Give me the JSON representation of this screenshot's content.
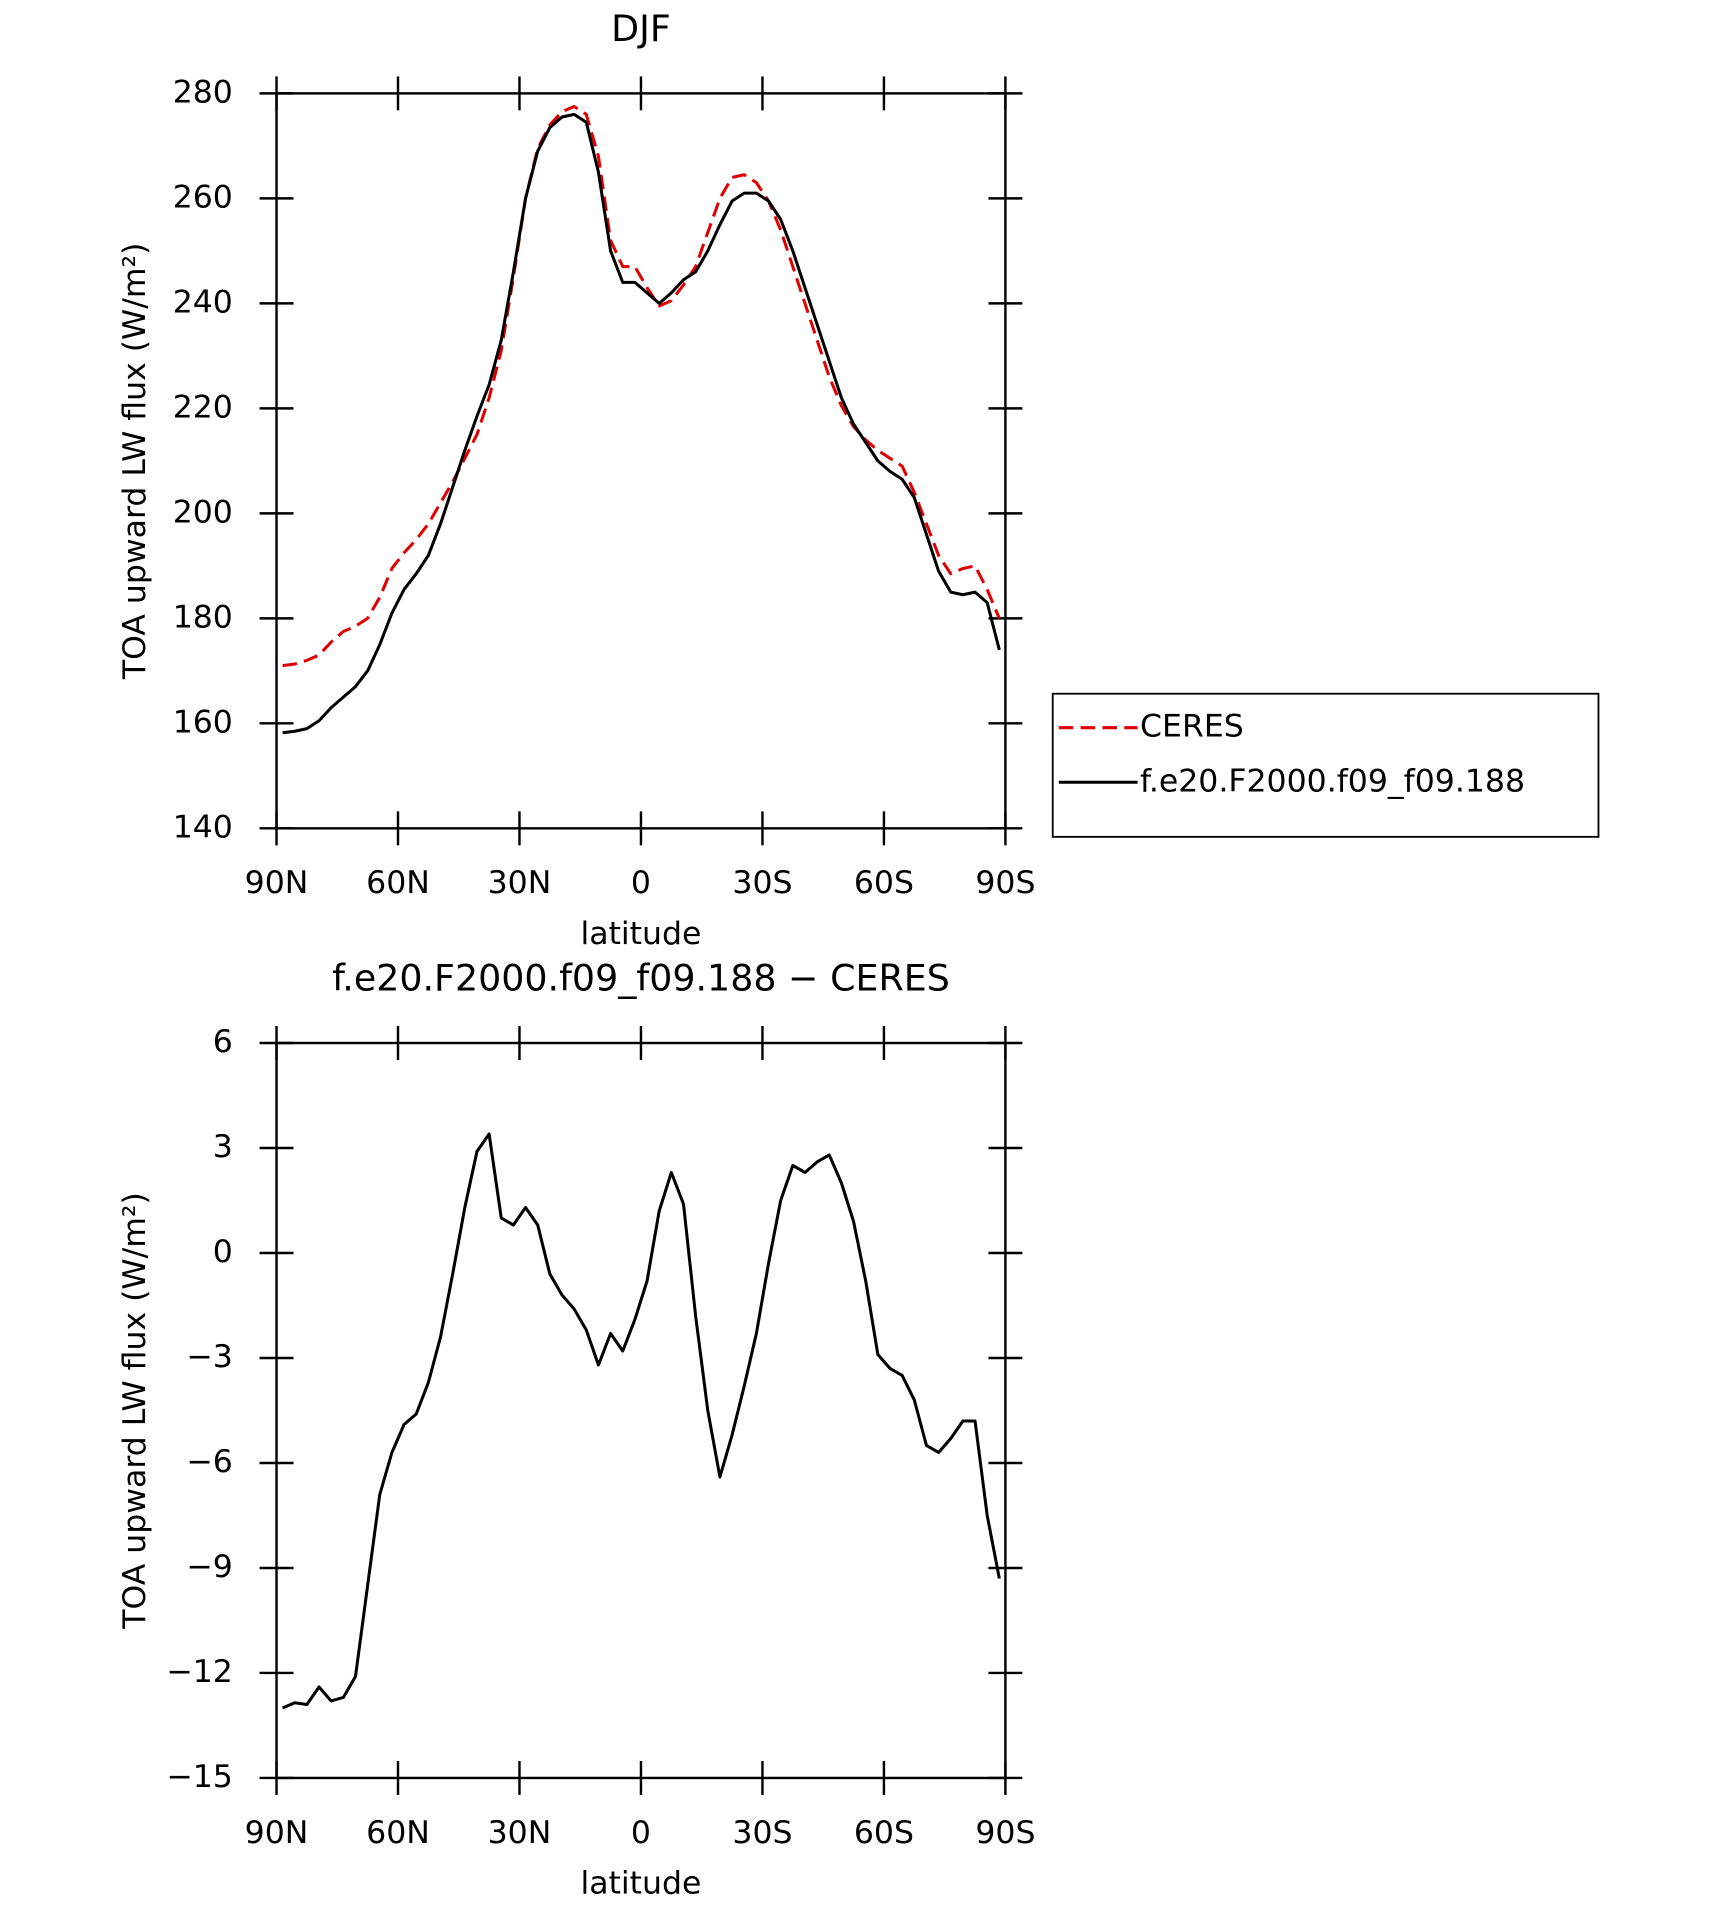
{
  "chart_data": [
    {
      "type": "line",
      "title": "DJF",
      "xlabel": "latitude",
      "ylabel": "TOA upward LW flux (W/m²)",
      "x": [
        88.5,
        85.5,
        82.5,
        79.5,
        76.5,
        73.5,
        70.5,
        67.5,
        64.5,
        61.5,
        58.5,
        55.5,
        52.5,
        49.5,
        46.5,
        43.5,
        40.5,
        37.5,
        34.5,
        31.5,
        28.5,
        25.5,
        22.5,
        19.5,
        16.5,
        13.5,
        10.5,
        7.5,
        4.5,
        1.5,
        -1.5,
        -4.5,
        -7.5,
        -10.5,
        -13.5,
        -16.5,
        -19.5,
        -22.5,
        -25.5,
        -28.5,
        -31.5,
        -34.5,
        -37.5,
        -40.5,
        -43.5,
        -46.5,
        -49.5,
        -52.5,
        -55.5,
        -58.5,
        -61.5,
        -64.5,
        -67.5,
        -70.5,
        -73.5,
        -76.5,
        -79.5,
        -82.5,
        -85.5,
        -88.5
      ],
      "series": [
        {
          "name": "CERES",
          "color": "#e00000",
          "dashed": true,
          "values": [
            171,
            171.3,
            172,
            173,
            175.5,
            177.5,
            178.5,
            180,
            184,
            189.5,
            192.5,
            195,
            198,
            202,
            206,
            210.5,
            215,
            222,
            231,
            245,
            260,
            269.5,
            274,
            276.5,
            277.5,
            276,
            268,
            252,
            247,
            247,
            243,
            239.5,
            240.5,
            243.5,
            247,
            253.5,
            260,
            264,
            264.5,
            263,
            259.5,
            254,
            247,
            240,
            233,
            226,
            220.5,
            216.5,
            214,
            212,
            210.5,
            209,
            204,
            198,
            192,
            188.5,
            189.5,
            190,
            185.5,
            180
          ]
        },
        {
          "name": "f.e20.F2000.f09_f09.188",
          "color": "#000000",
          "dashed": false,
          "values": [
            158.2,
            158.5,
            159,
            160.5,
            163,
            165,
            167,
            170,
            175,
            181,
            185.5,
            188.5,
            192,
            198,
            205,
            212,
            218.5,
            224.5,
            233,
            246,
            260,
            269,
            273.5,
            275.5,
            276,
            274.5,
            265,
            250,
            244,
            244,
            242,
            240,
            242,
            244.5,
            246,
            250,
            255,
            259.5,
            261,
            261,
            259.5,
            256,
            250,
            243,
            236,
            229,
            222,
            217,
            213.5,
            210,
            208,
            206.5,
            203,
            196,
            189,
            185,
            184.5,
            185,
            183,
            174
          ]
        }
      ],
      "xlim": [
        90,
        -90
      ],
      "xticks": [
        {
          "value": 90,
          "label": "90N"
        },
        {
          "value": 60,
          "label": "60N"
        },
        {
          "value": 30,
          "label": "30N"
        },
        0,
        {
          "value": -30,
          "label": "30S"
        },
        {
          "value": -60,
          "label": "60S"
        },
        {
          "value": -90,
          "label": "90S"
        }
      ],
      "ylim": [
        140,
        280
      ],
      "yticks": [
        140,
        160,
        180,
        200,
        220,
        240,
        260,
        280
      ],
      "legend": "right"
    },
    {
      "type": "line",
      "title": "f.e20.F2000.f09_f09.188 − CERES",
      "xlabel": "latitude",
      "ylabel": "TOA upward LW flux (W/m²)",
      "x": [
        88.5,
        85.5,
        82.5,
        79.5,
        76.5,
        73.5,
        70.5,
        67.5,
        64.5,
        61.5,
        58.5,
        55.5,
        52.5,
        49.5,
        46.5,
        43.5,
        40.5,
        37.5,
        34.5,
        31.5,
        28.5,
        25.5,
        22.5,
        19.5,
        16.5,
        13.5,
        10.5,
        7.5,
        4.5,
        1.5,
        -1.5,
        -4.5,
        -7.5,
        -10.5,
        -13.5,
        -16.5,
        -19.5,
        -22.5,
        -25.5,
        -28.5,
        -31.5,
        -34.5,
        -37.5,
        -40.5,
        -43.5,
        -46.5,
        -49.5,
        -52.5,
        -55.5,
        -58.5,
        -61.5,
        -64.5,
        -67.5,
        -70.5,
        -73.5,
        -76.5,
        -79.5,
        -82.5,
        -85.5,
        -88.5
      ],
      "color": "#000000",
      "values": [
        -13,
        -12.85,
        -12.9,
        -12.4,
        -12.8,
        -12.7,
        -12.1,
        -9.5,
        -6.9,
        -5.7,
        -4.9,
        -4.6,
        -3.7,
        -2.4,
        -0.6,
        1.3,
        2.9,
        3.4,
        1,
        0.8,
        1.3,
        0.8,
        -0.6,
        -1.2,
        -1.6,
        -2.2,
        -3.2,
        -2.3,
        -2.8,
        -1.9,
        -0.8,
        1.2,
        2.3,
        1.4,
        -1.8,
        -4.5,
        -6.4,
        -5.2,
        -3.8,
        -2.3,
        -0.3,
        1.5,
        2.5,
        2.3,
        2.6,
        2.8,
        2,
        0.9,
        -0.8,
        -2.9,
        -3.3,
        -3.5,
        -4.2,
        -5.5,
        -5.7,
        -5.3,
        -4.8,
        -4.8,
        -7.5,
        -9.3
      ],
      "xlim": [
        90,
        -90
      ],
      "xticks": [
        {
          "value": 90,
          "label": "90N"
        },
        {
          "value": 60,
          "label": "60N"
        },
        {
          "value": 30,
          "label": "30N"
        },
        0,
        {
          "value": -30,
          "label": "30S"
        },
        {
          "value": -60,
          "label": "60S"
        },
        {
          "value": -90,
          "label": "90S"
        }
      ],
      "ylim": [
        -15,
        6
      ],
      "yticks": [
        {
          "value": -15,
          "label": "−15"
        },
        {
          "value": -12,
          "label": "−12"
        },
        {
          "value": -9,
          "label": "−9"
        },
        {
          "value": -6,
          "label": "−6"
        },
        {
          "value": -3,
          "label": "−3"
        },
        0,
        3,
        6
      ]
    }
  ]
}
